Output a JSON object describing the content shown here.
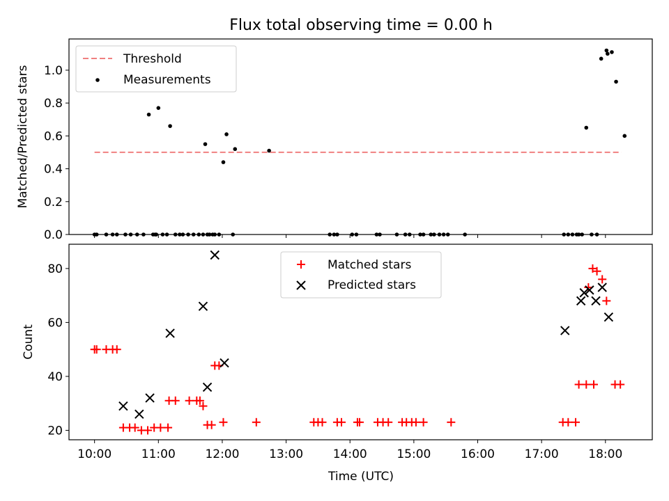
{
  "figure_title": "Flux total observing time = 0.00 h",
  "colors": {
    "threshold": "#f08080",
    "measurement": "#000000",
    "matched": "#ff0000",
    "predicted": "#000000"
  },
  "chart_data": [
    {
      "type": "scatter",
      "title": "Flux total observing time = 0.00 h",
      "xlabel": "",
      "ylabel": "Matched/Predicted stars",
      "xlim": [
        "09:36",
        "18:44"
      ],
      "ylim": [
        0,
        1.19
      ],
      "x_ticks": [
        "10:00",
        "11:00",
        "12:00",
        "13:00",
        "14:00",
        "15:00",
        "16:00",
        "17:00",
        "18:00"
      ],
      "x_tick_labels_shown": false,
      "y_ticks": [
        0.0,
        0.2,
        0.4,
        0.6,
        0.8,
        1.0
      ],
      "y_tick_labels": [
        "0.0",
        "0.2",
        "0.4",
        "0.6",
        "0.8",
        "1.0"
      ],
      "legend_position": "upper-left",
      "series": [
        {
          "name": "Threshold",
          "kind": "line-dashed",
          "color": "#f08080",
          "x": [
            "10:00",
            "18:15"
          ],
          "y": [
            0.5,
            0.5
          ]
        },
        {
          "name": "Measurements",
          "kind": "points",
          "color": "#000000",
          "x": [
            "10:00",
            "10:02",
            "10:11",
            "10:17",
            "10:21",
            "10:29",
            "10:34",
            "10:40",
            "10:46",
            "10:51",
            "10:55",
            "10:57",
            "10:58",
            "11:00",
            "11:04",
            "11:08",
            "11:11",
            "11:16",
            "11:20",
            "11:23",
            "11:28",
            "11:33",
            "11:38",
            "11:42",
            "11:44",
            "11:46",
            "11:48",
            "11:51",
            "11:53",
            "11:57",
            "12:01",
            "12:04",
            "12:10",
            "12:12",
            "12:44",
            "13:41",
            "13:45",
            "13:48",
            "14:02",
            "14:06",
            "14:25",
            "14:28",
            "14:44",
            "14:52",
            "14:56",
            "15:06",
            "15:09",
            "15:16",
            "15:19",
            "15:24",
            "15:28",
            "15:32",
            "15:48",
            "17:21",
            "17:25",
            "17:29",
            "17:33",
            "17:35",
            "17:38",
            "17:42",
            "17:47",
            "17:52",
            "17:56",
            "18:01",
            "18:02",
            "18:06",
            "18:10",
            "18:18"
          ],
          "y": [
            0,
            0,
            0,
            0,
            0,
            0,
            0,
            0,
            0,
            0.73,
            0,
            0,
            0,
            0.77,
            0,
            0,
            0.66,
            0,
            0,
            0,
            0,
            0,
            0,
            0,
            0.55,
            0,
            0,
            0,
            0,
            0,
            0.44,
            0.61,
            0,
            0.52,
            0.51,
            0,
            0,
            0,
            0,
            0,
            0,
            0,
            0,
            0,
            0,
            0,
            0,
            0,
            0,
            0,
            0,
            0,
            0,
            0,
            0,
            0,
            0,
            0,
            0,
            0.65,
            0,
            0,
            1.07,
            1.12,
            1.1,
            1.11,
            0.93,
            0.6
          ]
        }
      ]
    },
    {
      "type": "scatter",
      "xlabel": "Time (UTC)",
      "ylabel": "Count",
      "xlim": [
        "09:36",
        "18:44"
      ],
      "ylim": [
        16.5,
        89
      ],
      "x_ticks": [
        "10:00",
        "11:00",
        "12:00",
        "13:00",
        "14:00",
        "15:00",
        "16:00",
        "17:00",
        "18:00"
      ],
      "x_tick_labels": [
        "10:00",
        "11:00",
        "12:00",
        "13:00",
        "14:00",
        "15:00",
        "16:00",
        "17:00",
        "18:00"
      ],
      "y_ticks": [
        20,
        40,
        60,
        80
      ],
      "y_tick_labels": [
        "20",
        "40",
        "60",
        "80"
      ],
      "legend_position": "upper-center",
      "series": [
        {
          "name": "Matched stars",
          "marker": "plus",
          "color": "#ff0000",
          "points": [
            [
              "10:00",
              50
            ],
            [
              "10:02",
              50
            ],
            [
              "10:11",
              50
            ],
            [
              "10:17",
              50
            ],
            [
              "10:21",
              50
            ],
            [
              "10:27",
              21
            ],
            [
              "10:33",
              21
            ],
            [
              "10:38",
              21
            ],
            [
              "10:44",
              20
            ],
            [
              "10:50",
              20
            ],
            [
              "10:56",
              21
            ],
            [
              "11:02",
              21
            ],
            [
              "11:09",
              21
            ],
            [
              "11:10",
              31
            ],
            [
              "11:16",
              31
            ],
            [
              "11:29",
              31
            ],
            [
              "11:36",
              31
            ],
            [
              "11:39",
              31
            ],
            [
              "11:42",
              29
            ],
            [
              "11:46",
              22
            ],
            [
              "11:50",
              22
            ],
            [
              "11:53",
              44
            ],
            [
              "11:57",
              44
            ],
            [
              "12:01",
              23
            ],
            [
              "12:32",
              23
            ],
            [
              "13:26",
              23
            ],
            [
              "13:30",
              23
            ],
            [
              "13:34",
              23
            ],
            [
              "13:48",
              23
            ],
            [
              "13:52",
              23
            ],
            [
              "14:07",
              23
            ],
            [
              "14:09",
              23
            ],
            [
              "14:26",
              23
            ],
            [
              "14:31",
              23
            ],
            [
              "14:36",
              23
            ],
            [
              "14:49",
              23
            ],
            [
              "14:53",
              23
            ],
            [
              "14:58",
              23
            ],
            [
              "15:02",
              23
            ],
            [
              "15:09",
              23
            ],
            [
              "15:35",
              23
            ],
            [
              "17:20",
              23
            ],
            [
              "17:25",
              23
            ],
            [
              "17:32",
              23
            ],
            [
              "17:35",
              37
            ],
            [
              "17:42",
              37
            ],
            [
              "17:49",
              37
            ],
            [
              "17:44",
              73
            ],
            [
              "17:48",
              80
            ],
            [
              "17:52",
              79
            ],
            [
              "17:57",
              76
            ],
            [
              "18:01",
              68
            ],
            [
              "18:09",
              37
            ],
            [
              "18:14",
              37
            ]
          ]
        },
        {
          "name": "Predicted stars",
          "marker": "x",
          "color": "#000000",
          "points": [
            [
              "10:27",
              29
            ],
            [
              "10:42",
              26
            ],
            [
              "10:52",
              32
            ],
            [
              "11:11",
              56
            ],
            [
              "11:42",
              66
            ],
            [
              "11:46",
              36
            ],
            [
              "11:53",
              85
            ],
            [
              "12:02",
              45
            ],
            [
              "17:22",
              57
            ],
            [
              "17:37",
              68
            ],
            [
              "17:40",
              71
            ],
            [
              "17:45",
              72
            ],
            [
              "17:51",
              68
            ],
            [
              "17:57",
              73
            ],
            [
              "18:03",
              62
            ]
          ]
        }
      ]
    }
  ]
}
